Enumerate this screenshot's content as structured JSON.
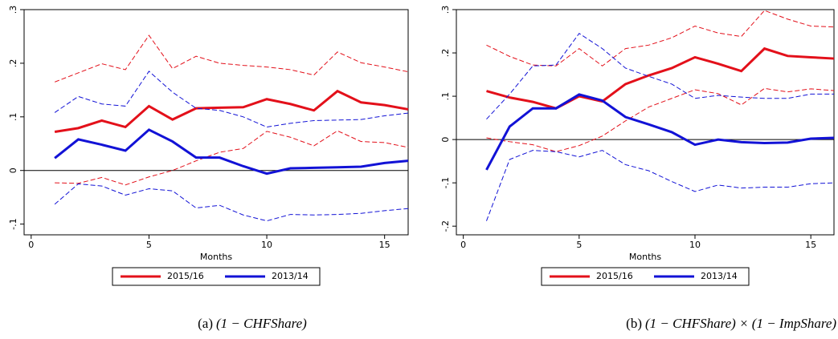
{
  "chart_data": [
    {
      "type": "line",
      "caption_label": "(a)",
      "caption": "(1 − CHFShare)",
      "xlabel": "Months",
      "x": [
        1,
        2,
        3,
        4,
        5,
        6,
        7,
        8,
        9,
        10,
        11,
        12,
        13,
        14,
        15,
        16
      ],
      "xlim": [
        -0.3,
        16
      ],
      "xticks": [
        0,
        5,
        10,
        15
      ],
      "ylim": [
        -0.12,
        0.3
      ],
      "yticks": [
        {
          "value": -0.1,
          "label": "-.1"
        },
        0,
        {
          "value": 0.1,
          "label": ".1"
        },
        {
          "value": 0.2,
          "label": ".2"
        },
        {
          "value": 0.3,
          "label": ".3"
        }
      ],
      "hline": 0,
      "series": [
        {
          "name": "2015/16",
          "color": "#e3101a",
          "values": [
            0.072,
            0.079,
            0.093,
            0.081,
            0.12,
            0.095,
            0.116,
            0.117,
            0.118,
            0.133,
            0.124,
            0.112,
            0.148,
            0.127,
            0.122,
            0.114
          ],
          "upper": [
            0.165,
            0.182,
            0.199,
            0.188,
            0.252,
            0.19,
            0.213,
            0.2,
            0.196,
            0.193,
            0.188,
            0.178,
            0.221,
            0.201,
            0.193,
            0.184
          ],
          "lower": [
            -0.023,
            -0.024,
            -0.013,
            -0.027,
            -0.012,
            0.0,
            0.018,
            0.034,
            0.041,
            0.073,
            0.062,
            0.046,
            0.074,
            0.054,
            0.052,
            0.043
          ]
        },
        {
          "name": "2013/14",
          "color": "#1212d6",
          "values": [
            0.023,
            0.058,
            0.048,
            0.037,
            0.076,
            0.054,
            0.024,
            0.024,
            0.008,
            -0.006,
            0.004,
            0.005,
            0.006,
            0.007,
            0.014,
            0.018
          ],
          "upper": [
            0.108,
            0.138,
            0.124,
            0.12,
            0.185,
            0.146,
            0.116,
            0.112,
            0.1,
            0.081,
            0.088,
            0.093,
            0.094,
            0.095,
            0.102,
            0.107
          ],
          "lower": [
            -0.063,
            -0.025,
            -0.029,
            -0.046,
            -0.034,
            -0.038,
            -0.07,
            -0.065,
            -0.083,
            -0.094,
            -0.082,
            -0.083,
            -0.082,
            -0.08,
            -0.075,
            -0.071
          ]
        }
      ]
    },
    {
      "type": "line",
      "caption_label": "(b)",
      "caption": "(1 − CHFShare) × (1 − ImpShare)",
      "xlabel": "Months",
      "x": [
        1,
        2,
        3,
        4,
        5,
        6,
        7,
        8,
        9,
        10,
        11,
        12,
        13,
        14,
        15,
        16
      ],
      "xlim": [
        -0.3,
        16
      ],
      "xticks": [
        0,
        5,
        10,
        15
      ],
      "ylim": [
        -0.22,
        0.3
      ],
      "yticks": [
        {
          "value": -0.2,
          "label": "-.2"
        },
        {
          "value": -0.1,
          "label": "-.1"
        },
        0,
        {
          "value": 0.1,
          "label": ".1"
        },
        {
          "value": 0.2,
          "label": ".2"
        },
        {
          "value": 0.3,
          "label": ".3"
        }
      ],
      "hline": 0,
      "series": [
        {
          "name": "2015/16",
          "color": "#e3101a",
          "values": [
            0.112,
            0.097,
            0.087,
            0.072,
            0.1,
            0.088,
            0.128,
            0.148,
            0.165,
            0.19,
            0.175,
            0.158,
            0.21,
            0.193,
            0.19,
            0.187
          ],
          "upper": [
            0.218,
            0.192,
            0.172,
            0.17,
            0.21,
            0.17,
            0.21,
            0.218,
            0.235,
            0.262,
            0.246,
            0.238,
            0.298,
            0.278,
            0.262,
            0.26
          ],
          "lower": [
            0.004,
            -0.005,
            -0.012,
            -0.028,
            -0.014,
            0.008,
            0.043,
            0.075,
            0.095,
            0.115,
            0.106,
            0.08,
            0.118,
            0.11,
            0.117,
            0.113
          ]
        },
        {
          "name": "2013/14",
          "color": "#1212d6",
          "values": [
            -0.07,
            0.03,
            0.072,
            0.072,
            0.104,
            0.09,
            0.052,
            0.035,
            0.017,
            -0.012,
            0.0,
            -0.006,
            -0.008,
            -0.007,
            0.002,
            0.004
          ],
          "upper": [
            0.047,
            0.105,
            0.17,
            0.172,
            0.245,
            0.21,
            0.165,
            0.146,
            0.128,
            0.095,
            0.102,
            0.098,
            0.095,
            0.095,
            0.105,
            0.105
          ],
          "lower": [
            -0.188,
            -0.046,
            -0.025,
            -0.028,
            -0.04,
            -0.025,
            -0.058,
            -0.072,
            -0.097,
            -0.12,
            -0.105,
            -0.112,
            -0.11,
            -0.11,
            -0.102,
            -0.1
          ]
        }
      ]
    }
  ]
}
